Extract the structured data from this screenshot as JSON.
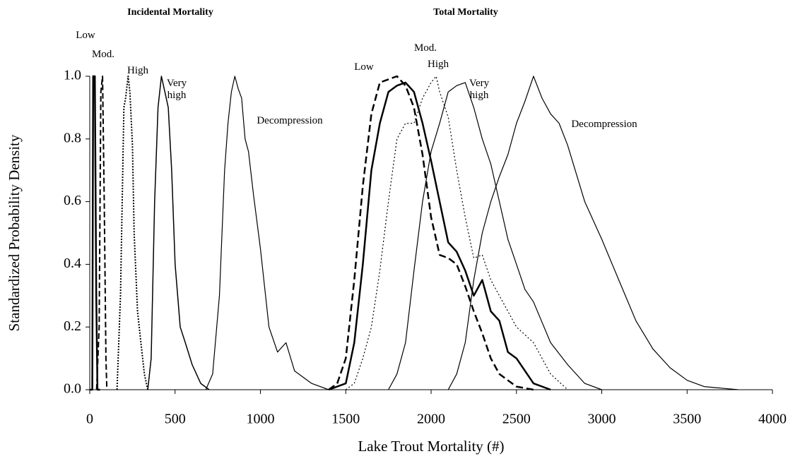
{
  "chart_data": {
    "type": "line",
    "xlabel": "Lake Trout Mortality (#)",
    "ylabel": "Standardized Probability Density",
    "annotations": [
      "Incidental Mortality",
      "Total Mortality"
    ],
    "xlim": [
      0,
      4000
    ],
    "xticks": [
      0,
      500,
      1000,
      1500,
      2000,
      2500,
      3000,
      3500,
      4000
    ],
    "ylim": [
      0,
      1
    ],
    "yticks": [
      {
        "value": 0,
        "label": "0.0"
      },
      0.2,
      0.4,
      0.6,
      0.8,
      {
        "value": 1,
        "label": "1.0"
      }
    ],
    "grid": false,
    "series": [
      {
        "name": "Low",
        "color": "#000000",
        "width": 2.5,
        "dash": "none",
        "x": [
          0,
          15,
          20,
          30,
          38,
          45,
          60
        ],
        "values": [
          0,
          0,
          1,
          1,
          0.3,
          0,
          0
        ]
      },
      {
        "name": "Mod.",
        "color": "#000000",
        "width": 2,
        "dash": "8,4",
        "x": [
          40,
          55,
          65,
          75,
          85,
          95,
          100
        ],
        "values": [
          0,
          0.2,
          0.95,
          1,
          0.6,
          0.1,
          0
        ]
      },
      {
        "name": "High",
        "color": "#000000",
        "width": 2,
        "dash": "2,2",
        "x": [
          160,
          180,
          200,
          210,
          225,
          235,
          250,
          260,
          280,
          300,
          320,
          340
        ],
        "values": [
          0,
          0.3,
          0.9,
          0.93,
          1,
          0.95,
          0.78,
          0.5,
          0.25,
          0.15,
          0.05,
          0
        ]
      },
      {
        "name": "Very high",
        "color": "#000000",
        "width": 1.5,
        "dash": "none",
        "x": [
          340,
          360,
          380,
          400,
          420,
          440,
          460,
          480,
          500,
          530,
          560,
          600,
          650,
          700
        ],
        "values": [
          0,
          0.1,
          0.6,
          0.9,
          1,
          0.95,
          0.9,
          0.7,
          0.4,
          0.2,
          0.15,
          0.08,
          0.02,
          0
        ]
      },
      {
        "name": "Decompression",
        "color": "#000000",
        "width": 1.2,
        "dash": "none",
        "x": [
          680,
          720,
          760,
          790,
          810,
          830,
          850,
          870,
          890,
          910,
          930,
          960,
          1000,
          1050,
          1100,
          1150,
          1200,
          1300,
          1400
        ],
        "values": [
          0,
          0.05,
          0.3,
          0.7,
          0.85,
          0.95,
          1,
          0.96,
          0.93,
          0.8,
          0.76,
          0.62,
          0.45,
          0.2,
          0.12,
          0.15,
          0.06,
          0.02,
          0
        ]
      },
      {
        "name": "Low",
        "color": "#000000",
        "width": 2.5,
        "dash": "10,5",
        "x": [
          1400,
          1450,
          1500,
          1550,
          1600,
          1650,
          1700,
          1750,
          1800,
          1850,
          1900,
          1950,
          2000,
          2050,
          2100,
          2150,
          2200,
          2250,
          2300,
          2350,
          2400,
          2500,
          2600
        ],
        "values": [
          0,
          0.02,
          0.1,
          0.35,
          0.65,
          0.88,
          0.98,
          0.99,
          1,
          0.97,
          0.9,
          0.75,
          0.55,
          0.43,
          0.42,
          0.4,
          0.33,
          0.25,
          0.18,
          0.1,
          0.05,
          0.01,
          0
        ]
      },
      {
        "name": "Mod.",
        "color": "#000000",
        "width": 2.5,
        "dash": "none",
        "x": [
          1400,
          1500,
          1550,
          1600,
          1650,
          1700,
          1750,
          1800,
          1850,
          1900,
          1950,
          2000,
          2050,
          2100,
          2150,
          2200,
          2250,
          2300,
          2350,
          2400,
          2450,
          2500,
          2600,
          2700
        ],
        "values": [
          0,
          0.02,
          0.15,
          0.4,
          0.7,
          0.85,
          0.95,
          0.97,
          0.98,
          0.95,
          0.85,
          0.73,
          0.6,
          0.47,
          0.44,
          0.38,
          0.3,
          0.35,
          0.25,
          0.22,
          0.12,
          0.1,
          0.02,
          0
        ]
      },
      {
        "name": "High",
        "color": "#000000",
        "width": 1.2,
        "dash": "2,3",
        "x": [
          1500,
          1550,
          1600,
          1650,
          1700,
          1750,
          1800,
          1850,
          1900,
          1950,
          2000,
          2030,
          2050,
          2100,
          2150,
          2200,
          2250,
          2300,
          2350,
          2400,
          2450,
          2500,
          2600,
          2700,
          2800
        ],
        "values": [
          0,
          0.02,
          0.1,
          0.2,
          0.38,
          0.6,
          0.8,
          0.85,
          0.85,
          0.93,
          0.98,
          1,
          0.95,
          0.87,
          0.7,
          0.55,
          0.42,
          0.43,
          0.35,
          0.3,
          0.25,
          0.2,
          0.15,
          0.05,
          0
        ]
      },
      {
        "name": "Very high",
        "color": "#000000",
        "width": 1.2,
        "dash": "none",
        "x": [
          1750,
          1800,
          1850,
          1900,
          1950,
          2000,
          2050,
          2100,
          2150,
          2200,
          2250,
          2300,
          2350,
          2400,
          2450,
          2500,
          2550,
          2600,
          2700,
          2800,
          2900,
          3000
        ],
        "values": [
          0,
          0.05,
          0.15,
          0.38,
          0.6,
          0.76,
          0.85,
          0.95,
          0.97,
          0.98,
          0.9,
          0.8,
          0.72,
          0.6,
          0.48,
          0.4,
          0.32,
          0.28,
          0.15,
          0.08,
          0.02,
          0
        ]
      },
      {
        "name": "Decompression",
        "color": "#000000",
        "width": 1.2,
        "dash": "none",
        "x": [
          2100,
          2150,
          2200,
          2250,
          2300,
          2350,
          2400,
          2450,
          2500,
          2550,
          2600,
          2650,
          2700,
          2750,
          2800,
          2900,
          3000,
          3100,
          3200,
          3300,
          3400,
          3500,
          3600,
          3700,
          3800
        ],
        "values": [
          0,
          0.05,
          0.15,
          0.35,
          0.5,
          0.6,
          0.68,
          0.75,
          0.85,
          0.92,
          1,
          0.93,
          0.88,
          0.85,
          0.78,
          0.6,
          0.48,
          0.35,
          0.22,
          0.13,
          0.07,
          0.03,
          0.01,
          0.005,
          0
        ]
      }
    ]
  }
}
